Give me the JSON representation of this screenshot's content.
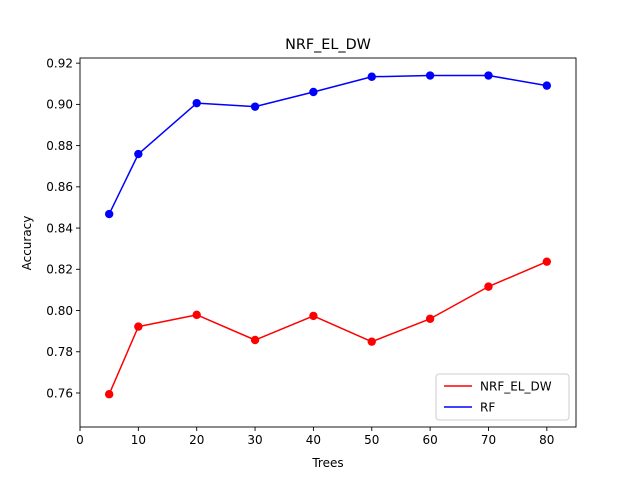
{
  "chart_data": {
    "type": "line",
    "title": "NRF_EL_DW",
    "xlabel": "Trees",
    "ylabel": "Accuracy",
    "xlim": [
      0,
      85
    ],
    "ylim": [
      0.7435,
      0.9225
    ],
    "xticks": [
      0,
      10,
      20,
      30,
      40,
      50,
      60,
      70,
      80
    ],
    "yticks": [
      0.76,
      0.78,
      0.8,
      0.82,
      0.84,
      0.86,
      0.88,
      0.9,
      0.92
    ],
    "xtick_labels": [
      "0",
      "10",
      "20",
      "30",
      "40",
      "50",
      "60",
      "70",
      "80"
    ],
    "ytick_labels": [
      "0.76",
      "0.78",
      "0.80",
      "0.82",
      "0.84",
      "0.86",
      "0.88",
      "0.90",
      "0.92"
    ],
    "x": [
      5,
      10,
      20,
      30,
      40,
      50,
      60,
      70,
      80
    ],
    "series": [
      {
        "name": "NRF_EL_DW",
        "color": "#ff0000",
        "values": [
          0.7594,
          0.7922,
          0.7979,
          0.7857,
          0.7974,
          0.7849,
          0.796,
          0.8116,
          0.8237
        ]
      },
      {
        "name": "RF",
        "color": "#0000ff",
        "values": [
          0.8468,
          0.8759,
          0.9006,
          0.8989,
          0.906,
          0.9134,
          0.914,
          0.914,
          0.9091
        ]
      }
    ],
    "grid": false,
    "legend_position": "lower-right"
  }
}
